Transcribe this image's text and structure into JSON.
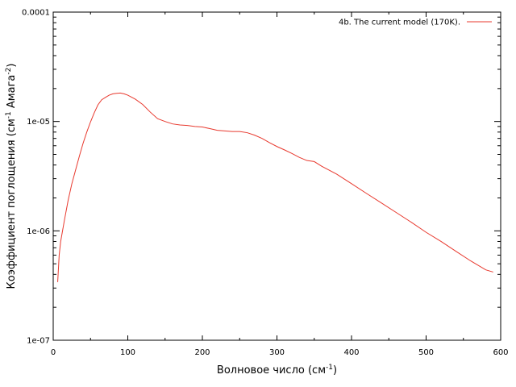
{
  "chart_data": {
    "type": "line",
    "title": "",
    "xlabel": "Волновое число (см",
    "xlabel_sup": "-1",
    "xlabel_tail": ")",
    "ylabel_parts": [
      "Коэффициент поглощения (см",
      "-1",
      " Амага",
      "-2",
      ")"
    ],
    "xlim": [
      0,
      600
    ],
    "ylim": [
      1e-07,
      0.0001
    ],
    "yscale": "log",
    "grid": false,
    "legend_position": "top-right",
    "x_ticks": [
      0,
      100,
      200,
      300,
      400,
      500,
      600
    ],
    "x_tick_labels": [
      "0",
      "100",
      "200",
      "300",
      "400",
      "500",
      "600"
    ],
    "y_ticks": [
      1e-07,
      1e-06,
      1e-05,
      0.0001
    ],
    "y_tick_labels": [
      "1e-07",
      "1e-06",
      "1e-05",
      "0.0001"
    ],
    "series": [
      {
        "name": "4b. The current model (170K).",
        "color": "#e8392e",
        "x": [
          6,
          8,
          10,
          15,
          20,
          25,
          30,
          35,
          40,
          45,
          50,
          55,
          60,
          65,
          70,
          75,
          80,
          85,
          90,
          95,
          100,
          110,
          120,
          130,
          140,
          150,
          160,
          170,
          180,
          190,
          200,
          210,
          220,
          230,
          240,
          250,
          260,
          270,
          280,
          290,
          300,
          310,
          320,
          330,
          340,
          350,
          360,
          380,
          400,
          420,
          440,
          460,
          480,
          500,
          520,
          540,
          560,
          580,
          590
        ],
        "y": [
          3.4e-07,
          6e-07,
          8e-07,
          1.25e-06,
          1.9e-06,
          2.7e-06,
          3.6e-06,
          4.8e-06,
          6.3e-06,
          8e-06,
          9.9e-06,
          1.2e-05,
          1.42e-05,
          1.58e-05,
          1.66e-05,
          1.74e-05,
          1.79e-05,
          1.81e-05,
          1.82e-05,
          1.79e-05,
          1.74e-05,
          1.6e-05,
          1.43e-05,
          1.22e-05,
          1.06e-05,
          1e-05,
          9.5e-06,
          9.3e-06,
          9.2e-06,
          9e-06,
          8.9e-06,
          8.6e-06,
          8.3e-06,
          8.2e-06,
          8.1e-06,
          8.1e-06,
          7.9e-06,
          7.5e-06,
          7e-06,
          6.4e-06,
          5.9e-06,
          5.5e-06,
          5.1e-06,
          4.7e-06,
          4.4e-06,
          4.3e-06,
          3.9e-06,
          3.3e-06,
          2.7e-06,
          2.2e-06,
          1.8e-06,
          1.47e-06,
          1.2e-06,
          9.7e-07,
          8e-07,
          6.5e-07,
          5.3e-07,
          4.4e-07,
          4.2e-07
        ]
      }
    ]
  }
}
